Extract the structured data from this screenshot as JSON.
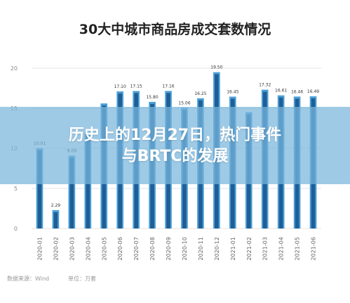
{
  "overlay": {
    "headline_line1": "历史上的12月27日，热门事件",
    "headline_line2": "与BRTC的发展",
    "band_color": "#78b6dc"
  },
  "chart_data": {
    "type": "bar",
    "title": "30大中城市商品房成交套数情况",
    "categories": [
      "2020-01",
      "2020-02",
      "2020-03",
      "2020-04",
      "2020-05",
      "2020-06",
      "2020-07",
      "2020-08",
      "2020-09",
      "2020-10",
      "2020-11",
      "2020-12",
      "2021-01",
      "2021-02",
      "2021-03",
      "2021-04",
      "2021-05",
      "2021-06"
    ],
    "x_tick_labels": [
      "2020-01",
      "2020-02",
      "2020-03",
      "2020-04",
      "2020-05",
      "2020-06",
      "2020-07",
      "2020-08",
      "2020-09",
      "2020-10",
      "2020-11",
      "2020-12",
      "2021-01",
      "2021-02",
      "2021-03",
      "2021-04",
      "2021-05",
      "2021-06"
    ],
    "series": [
      {
        "values": [
          10.01,
          2.29,
          9.09,
          11.9,
          15.6,
          17.1,
          17.15,
          15.8,
          17.16,
          15.06,
          16.25,
          19.5,
          16.45,
          14.5,
          17.32,
          16.61,
          16.46,
          16.49
        ],
        "data_labels": [
          "10.01",
          "2.29",
          "9.09",
          "",
          "",
          "17.10",
          "17.15",
          "15.80",
          "17.16",
          "15.06",
          "16.25",
          "19.50",
          "16.45",
          "",
          "17.32",
          "16.61",
          "16.46",
          "16.49"
        ]
      }
    ],
    "bar_colors": {
      "light": "#4a9fd6",
      "dark": "#1f5e95"
    },
    "ylim": [
      0,
      20
    ],
    "yticks": [
      0,
      5,
      10,
      15,
      20
    ],
    "ytick_labels": [
      "0",
      "5",
      "10",
      "15",
      "20"
    ],
    "grid": true,
    "source_text": "数据来源：Wind",
    "source_unit": "单位：万套"
  }
}
